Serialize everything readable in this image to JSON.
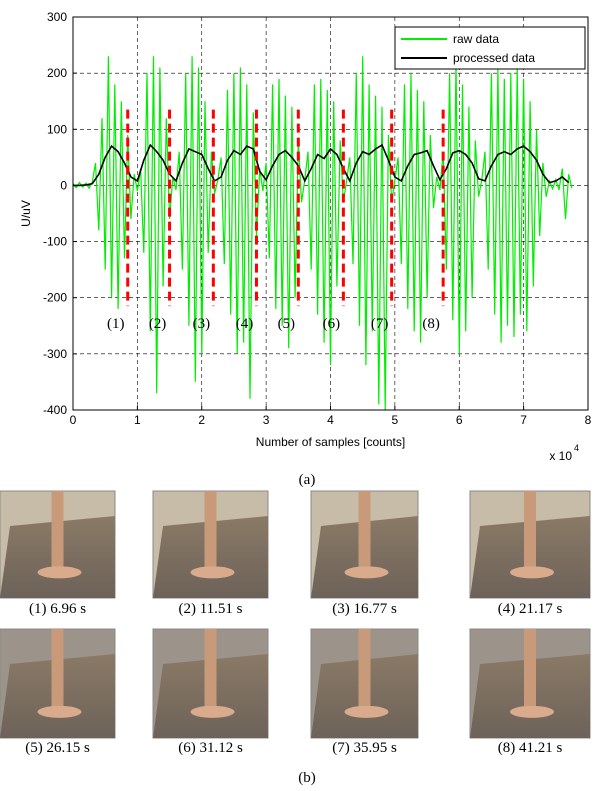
{
  "chart_data": {
    "type": "line",
    "xlabel": "Number of samples [counts]",
    "ylabel": "U/uV",
    "x_multiplier": {
      "base": "x 10",
      "exponent": "4"
    },
    "xlim": [
      0,
      8
    ],
    "xticks": [
      0,
      1,
      2,
      3,
      4,
      5,
      6,
      7,
      8
    ],
    "ylim": [
      -400,
      300
    ],
    "yticks": [
      -400,
      -300,
      -200,
      -100,
      0,
      100,
      200,
      300
    ],
    "grid": true,
    "legend": "upper right",
    "series": [
      {
        "name": "raw data",
        "color": "#00ee00",
        "x": [
          0,
          0.05,
          0.1,
          0.15,
          0.2,
          0.25,
          0.3,
          0.35,
          0.4,
          0.45,
          0.5,
          0.55,
          0.6,
          0.65,
          0.7,
          0.75,
          0.8,
          0.85,
          0.9,
          0.95,
          1,
          1.05,
          1.1,
          1.15,
          1.2,
          1.25,
          1.3,
          1.35,
          1.4,
          1.45,
          1.5,
          1.55,
          1.6,
          1.65,
          1.7,
          1.75,
          1.8,
          1.85,
          1.9,
          1.95,
          2,
          2.05,
          2.1,
          2.15,
          2.2,
          2.25,
          2.3,
          2.35,
          2.4,
          2.45,
          2.5,
          2.55,
          2.6,
          2.65,
          2.7,
          2.75,
          2.8,
          2.85,
          2.9,
          2.95,
          3,
          3.05,
          3.1,
          3.15,
          3.2,
          3.25,
          3.3,
          3.35,
          3.4,
          3.45,
          3.5,
          3.55,
          3.6,
          3.65,
          3.7,
          3.75,
          3.8,
          3.85,
          3.9,
          3.95,
          4,
          4.05,
          4.1,
          4.15,
          4.2,
          4.25,
          4.3,
          4.35,
          4.4,
          4.45,
          4.5,
          4.55,
          4.6,
          4.65,
          4.7,
          4.75,
          4.8,
          4.85,
          4.9,
          4.95,
          5,
          5.05,
          5.1,
          5.15,
          5.2,
          5.25,
          5.3,
          5.35,
          5.4,
          5.45,
          5.5,
          5.55,
          5.6,
          5.65,
          5.7,
          5.75,
          5.8,
          5.85,
          5.9,
          5.95,
          6,
          6.05,
          6.1,
          6.15,
          6.2,
          6.25,
          6.3,
          6.35,
          6.4,
          6.45,
          6.5,
          6.55,
          6.6,
          6.65,
          6.7,
          6.75,
          6.8,
          6.85,
          6.9,
          6.95,
          7,
          7.05,
          7.1,
          7.15,
          7.2,
          7.25,
          7.3,
          7.35,
          7.4,
          7.45,
          7.5,
          7.55,
          7.6,
          7.65,
          7.7,
          7.75
        ],
        "values": [
          3,
          -4,
          5,
          -3,
          4,
          -5,
          6,
          40,
          -80,
          120,
          -150,
          230,
          -200,
          180,
          -220,
          150,
          -130,
          90,
          -60,
          20,
          -10,
          30,
          -120,
          200,
          -260,
          230,
          -370,
          210,
          -180,
          120,
          -60,
          15,
          -8,
          60,
          -150,
          200,
          -250,
          230,
          -350,
          210,
          -300,
          150,
          -120,
          60,
          -15,
          10,
          50,
          -140,
          170,
          -230,
          200,
          -300,
          210,
          -280,
          180,
          -380,
          130,
          -90,
          30,
          -10,
          40,
          -130,
          180,
          -220,
          190,
          -250,
          160,
          -290,
          140,
          -200,
          80,
          -30,
          10,
          60,
          -150,
          180,
          -230,
          190,
          -280,
          170,
          -320,
          150,
          -180,
          80,
          -30,
          8,
          50,
          -140,
          200,
          -250,
          230,
          -320,
          180,
          -260,
          160,
          -390,
          140,
          -400,
          90,
          -30,
          10,
          50,
          -140,
          180,
          -220,
          200,
          -260,
          170,
          -280,
          150,
          -200,
          90,
          -40,
          15,
          -8,
          60,
          -150,
          200,
          -240,
          220,
          -300,
          180,
          -260,
          140,
          -200,
          80,
          -20,
          10,
          60,
          -150,
          200,
          -230,
          210,
          -280,
          190,
          -250,
          200,
          -270,
          210,
          -230,
          190,
          -260,
          150,
          -180,
          100,
          -90,
          40,
          -20,
          8,
          -6,
          10,
          -8,
          30,
          -60,
          20,
          -5
        ]
      },
      {
        "name": "processed data",
        "color": "#000000",
        "x": [
          0,
          0.1,
          0.2,
          0.3,
          0.4,
          0.5,
          0.6,
          0.7,
          0.8,
          0.9,
          1,
          1.1,
          1.2,
          1.3,
          1.4,
          1.5,
          1.6,
          1.7,
          1.8,
          1.9,
          2,
          2.1,
          2.2,
          2.3,
          2.4,
          2.5,
          2.6,
          2.7,
          2.8,
          2.9,
          3,
          3.1,
          3.2,
          3.3,
          3.4,
          3.5,
          3.6,
          3.7,
          3.8,
          3.9,
          4,
          4.1,
          4.2,
          4.3,
          4.4,
          4.5,
          4.6,
          4.7,
          4.8,
          4.9,
          5,
          5.1,
          5.2,
          5.3,
          5.4,
          5.5,
          5.6,
          5.7,
          5.8,
          5.9,
          6,
          6.1,
          6.2,
          6.3,
          6.4,
          6.5,
          6.6,
          6.7,
          6.8,
          6.9,
          7,
          7.1,
          7.2,
          7.3,
          7.4,
          7.5,
          7.6,
          7.7
        ],
        "values": [
          0,
          0,
          1,
          3,
          20,
          50,
          70,
          60,
          40,
          15,
          8,
          45,
          72,
          60,
          45,
          20,
          8,
          40,
          65,
          60,
          55,
          30,
          8,
          15,
          45,
          62,
          55,
          70,
          65,
          25,
          10,
          35,
          55,
          62,
          50,
          35,
          8,
          30,
          55,
          48,
          65,
          55,
          30,
          8,
          40,
          60,
          55,
          65,
          72,
          45,
          15,
          8,
          35,
          55,
          58,
          62,
          35,
          10,
          30,
          58,
          62,
          55,
          40,
          12,
          8,
          35,
          55,
          60,
          55,
          65,
          70,
          60,
          45,
          20,
          5,
          8,
          15,
          5
        ]
      }
    ],
    "markers": {
      "color": "#ff0000",
      "range": [
        -215,
        135
      ],
      "x": [
        0.85,
        1.5,
        2.18,
        2.85,
        3.5,
        4.2,
        4.95,
        5.75
      ],
      "labels": [
        "(1)",
        "(2)",
        "(3)",
        "(4)",
        "(5)",
        "(6)",
        "(7)",
        "(8)"
      ]
    }
  },
  "panel_a_label": "(a)",
  "panel_b_label": "(b)",
  "photo_captions": [
    "(1)  6.96 s",
    "(2) 11.51 s",
    "(3) 16.77 s",
    "(4) 21.17 s",
    "(5) 26.15 s",
    "(6) 31.12 s",
    "(7) 35.95 s",
    "(8) 41.21 s"
  ]
}
